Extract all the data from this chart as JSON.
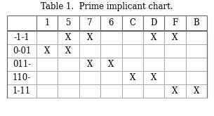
{
  "title": "Table 1.  Prime implicant chart.",
  "col_headers": [
    "",
    "1",
    "5",
    "7",
    "6",
    "C",
    "D",
    "F",
    "B"
  ],
  "row_headers": [
    "-1-1",
    "0-01",
    "011-",
    "110-",
    "1-11"
  ],
  "marks": [
    [
      0,
      1,
      1,
      0,
      0,
      1,
      1,
      0
    ],
    [
      1,
      1,
      0,
      0,
      0,
      0,
      0,
      0
    ],
    [
      0,
      0,
      1,
      1,
      0,
      0,
      0,
      0
    ],
    [
      0,
      0,
      0,
      0,
      1,
      1,
      0,
      0
    ],
    [
      0,
      0,
      0,
      0,
      0,
      0,
      1,
      1
    ]
  ],
  "title_fontsize": 8.5,
  "cell_fontsize": 8.5,
  "background_color": "#ffffff",
  "line_color": "#aaaaaa",
  "thick_line_color": "#666666",
  "text_color": "#000000"
}
